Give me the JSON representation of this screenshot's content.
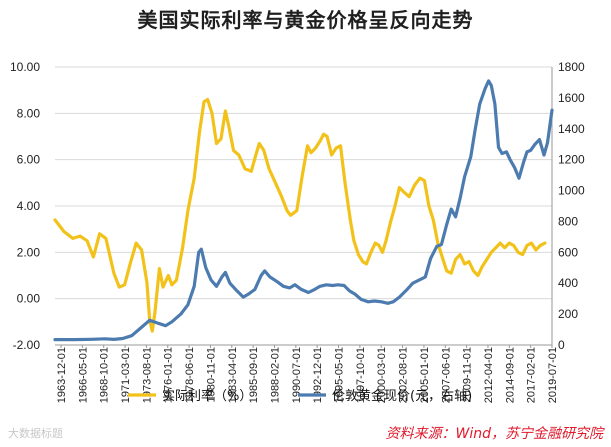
{
  "chart_data": {
    "type": "line",
    "title": "美国实际利率与黄金价格呈反向走势",
    "x_labels": [
      "1963-12-01",
      "1966-05-01",
      "1968-10-01",
      "1971-03-01",
      "1973-08-01",
      "1976-01-01",
      "1978-06-01",
      "1980-11-01",
      "1983-04-01",
      "1985-09-01",
      "1988-02-01",
      "1990-07-01",
      "1992-12-01",
      "1995-05-01",
      "1997-10-01",
      "2000-03-01",
      "2002-08-01",
      "2005-01-01",
      "2007-06-01",
      "2009-11-01",
      "2012-04-01",
      "2014-09-01",
      "2017-02-01",
      "2019-07-01"
    ],
    "x_range": [
      1963.9,
      2019.6
    ],
    "y_left": {
      "min": -2,
      "max": 10,
      "step": 2,
      "tick_labels": [
        "-2.00",
        "0.00",
        "2.00",
        "4.00",
        "6.00",
        "8.00",
        "10.00"
      ]
    },
    "y_right": {
      "min": 0,
      "max": 1800,
      "step": 200,
      "tick_labels": [
        "0",
        "200",
        "400",
        "600",
        "800",
        "1000",
        "1200",
        "1400",
        "1600",
        "1800"
      ]
    },
    "series": [
      {
        "name": "实际利率（%）",
        "axis": "left",
        "color": "#F2C21B",
        "points": [
          [
            1963.9,
            3.4
          ],
          [
            1964.9,
            2.9
          ],
          [
            1965.9,
            2.6
          ],
          [
            1966.7,
            2.7
          ],
          [
            1967.5,
            2.5
          ],
          [
            1968.2,
            1.8
          ],
          [
            1968.9,
            2.8
          ],
          [
            1969.6,
            2.6
          ],
          [
            1970.5,
            1.1
          ],
          [
            1971.1,
            0.5
          ],
          [
            1971.7,
            0.6
          ],
          [
            1972.4,
            1.6
          ],
          [
            1973.0,
            2.4
          ],
          [
            1973.6,
            2.1
          ],
          [
            1974.2,
            0.7
          ],
          [
            1974.5,
            -0.9
          ],
          [
            1974.8,
            -1.4
          ],
          [
            1975.1,
            -0.6
          ],
          [
            1975.6,
            1.3
          ],
          [
            1976.0,
            0.5
          ],
          [
            1976.6,
            1.0
          ],
          [
            1977.0,
            0.6
          ],
          [
            1977.5,
            0.8
          ],
          [
            1978.2,
            2.2
          ],
          [
            1978.8,
            3.8
          ],
          [
            1979.5,
            5.2
          ],
          [
            1980.1,
            7.2
          ],
          [
            1980.6,
            8.5
          ],
          [
            1981.0,
            8.6
          ],
          [
            1981.5,
            8.0
          ],
          [
            1982.0,
            6.7
          ],
          [
            1982.5,
            6.9
          ],
          [
            1983.0,
            8.1
          ],
          [
            1983.4,
            7.4
          ],
          [
            1983.9,
            6.4
          ],
          [
            1984.5,
            6.2
          ],
          [
            1985.2,
            5.6
          ],
          [
            1985.9,
            5.5
          ],
          [
            1986.4,
            6.2
          ],
          [
            1986.8,
            6.7
          ],
          [
            1987.3,
            6.4
          ],
          [
            1987.9,
            5.6
          ],
          [
            1988.6,
            5.0
          ],
          [
            1989.3,
            4.4
          ],
          [
            1989.9,
            3.8
          ],
          [
            1990.3,
            3.6
          ],
          [
            1991.0,
            3.8
          ],
          [
            1991.6,
            5.3
          ],
          [
            1992.2,
            6.6
          ],
          [
            1992.6,
            6.3
          ],
          [
            1993.1,
            6.5
          ],
          [
            1993.6,
            6.8
          ],
          [
            1994.0,
            7.1
          ],
          [
            1994.4,
            7.0
          ],
          [
            1994.9,
            6.2
          ],
          [
            1995.4,
            6.5
          ],
          [
            1995.9,
            6.6
          ],
          [
            1996.4,
            5.0
          ],
          [
            1997.0,
            3.4
          ],
          [
            1997.4,
            2.5
          ],
          [
            1997.9,
            1.9
          ],
          [
            1998.4,
            1.6
          ],
          [
            1998.8,
            1.5
          ],
          [
            1999.3,
            2.0
          ],
          [
            1999.8,
            2.4
          ],
          [
            2000.2,
            2.3
          ],
          [
            2000.6,
            2.0
          ],
          [
            2001.0,
            2.5
          ],
          [
            2001.5,
            3.3
          ],
          [
            2002.0,
            4.0
          ],
          [
            2002.5,
            4.8
          ],
          [
            2003.0,
            4.6
          ],
          [
            2003.6,
            4.4
          ],
          [
            2004.2,
            4.9
          ],
          [
            2004.8,
            5.2
          ],
          [
            2005.3,
            5.1
          ],
          [
            2005.8,
            4.0
          ],
          [
            2006.3,
            3.4
          ],
          [
            2006.8,
            2.4
          ],
          [
            2007.3,
            1.8
          ],
          [
            2007.8,
            1.2
          ],
          [
            2008.3,
            1.1
          ],
          [
            2008.8,
            1.7
          ],
          [
            2009.3,
            1.9
          ],
          [
            2009.8,
            1.5
          ],
          [
            2010.3,
            1.6
          ],
          [
            2010.8,
            1.2
          ],
          [
            2011.3,
            1.0
          ],
          [
            2011.8,
            1.4
          ],
          [
            2012.3,
            1.7
          ],
          [
            2012.8,
            2.0
          ],
          [
            2013.3,
            2.2
          ],
          [
            2013.8,
            2.4
          ],
          [
            2014.3,
            2.2
          ],
          [
            2014.8,
            2.4
          ],
          [
            2015.3,
            2.3
          ],
          [
            2015.8,
            2.0
          ],
          [
            2016.3,
            1.9
          ],
          [
            2016.8,
            2.3
          ],
          [
            2017.3,
            2.4
          ],
          [
            2017.8,
            2.1
          ],
          [
            2018.3,
            2.3
          ],
          [
            2018.8,
            2.4
          ]
        ]
      },
      {
        "name": "伦敦黄金现价(元，右轴)",
        "axis": "right",
        "color": "#4C7BB0",
        "points": [
          [
            1963.9,
            35
          ],
          [
            1966.0,
            35
          ],
          [
            1968.0,
            37
          ],
          [
            1969.5,
            40
          ],
          [
            1970.5,
            36
          ],
          [
            1971.5,
            42
          ],
          [
            1972.5,
            60
          ],
          [
            1973.5,
            110
          ],
          [
            1974.5,
            160
          ],
          [
            1975.5,
            140
          ],
          [
            1976.3,
            125
          ],
          [
            1977.0,
            150
          ],
          [
            1978.0,
            200
          ],
          [
            1978.8,
            260
          ],
          [
            1979.5,
            380
          ],
          [
            1980.0,
            600
          ],
          [
            1980.3,
            620
          ],
          [
            1980.8,
            500
          ],
          [
            1981.4,
            420
          ],
          [
            1982.0,
            380
          ],
          [
            1982.6,
            440
          ],
          [
            1983.0,
            470
          ],
          [
            1983.5,
            400
          ],
          [
            1984.3,
            350
          ],
          [
            1985.0,
            310
          ],
          [
            1985.6,
            330
          ],
          [
            1986.3,
            360
          ],
          [
            1987.0,
            450
          ],
          [
            1987.4,
            480
          ],
          [
            1988.0,
            440
          ],
          [
            1988.8,
            410
          ],
          [
            1989.5,
            380
          ],
          [
            1990.2,
            370
          ],
          [
            1990.8,
            390
          ],
          [
            1991.5,
            360
          ],
          [
            1992.3,
            340
          ],
          [
            1993.0,
            360
          ],
          [
            1993.6,
            380
          ],
          [
            1994.3,
            390
          ],
          [
            1995.0,
            385
          ],
          [
            1995.6,
            390
          ],
          [
            1996.3,
            385
          ],
          [
            1996.9,
            350
          ],
          [
            1997.5,
            330
          ],
          [
            1998.2,
            295
          ],
          [
            1999.0,
            280
          ],
          [
            1999.7,
            285
          ],
          [
            2000.5,
            280
          ],
          [
            2001.2,
            270
          ],
          [
            2001.8,
            280
          ],
          [
            2002.5,
            310
          ],
          [
            2003.2,
            350
          ],
          [
            2004.0,
            400
          ],
          [
            2004.7,
            420
          ],
          [
            2005.4,
            440
          ],
          [
            2006.0,
            560
          ],
          [
            2006.7,
            640
          ],
          [
            2007.2,
            650
          ],
          [
            2007.8,
            780
          ],
          [
            2008.3,
            880
          ],
          [
            2008.8,
            830
          ],
          [
            2009.3,
            950
          ],
          [
            2009.8,
            1090
          ],
          [
            2010.5,
            1220
          ],
          [
            2011.0,
            1400
          ],
          [
            2011.5,
            1560
          ],
          [
            2012.1,
            1660
          ],
          [
            2012.5,
            1710
          ],
          [
            2012.8,
            1680
          ],
          [
            2013.2,
            1560
          ],
          [
            2013.6,
            1280
          ],
          [
            2014.0,
            1240
          ],
          [
            2014.5,
            1250
          ],
          [
            2014.9,
            1200
          ],
          [
            2015.4,
            1150
          ],
          [
            2015.9,
            1080
          ],
          [
            2016.4,
            1180
          ],
          [
            2016.8,
            1250
          ],
          [
            2017.2,
            1260
          ],
          [
            2017.7,
            1300
          ],
          [
            2018.2,
            1330
          ],
          [
            2018.7,
            1230
          ],
          [
            2019.1,
            1310
          ],
          [
            2019.6,
            1520
          ]
        ]
      }
    ],
    "legend": [
      {
        "label": "实际利率（%）",
        "color": "#F2C21B"
      },
      {
        "label": "伦敦黄金现价(元，右轴)",
        "color": "#4C7BB0"
      }
    ],
    "source": "资料来源：Wind，苏宁金融研究院"
  },
  "watermark": "大数据标题"
}
